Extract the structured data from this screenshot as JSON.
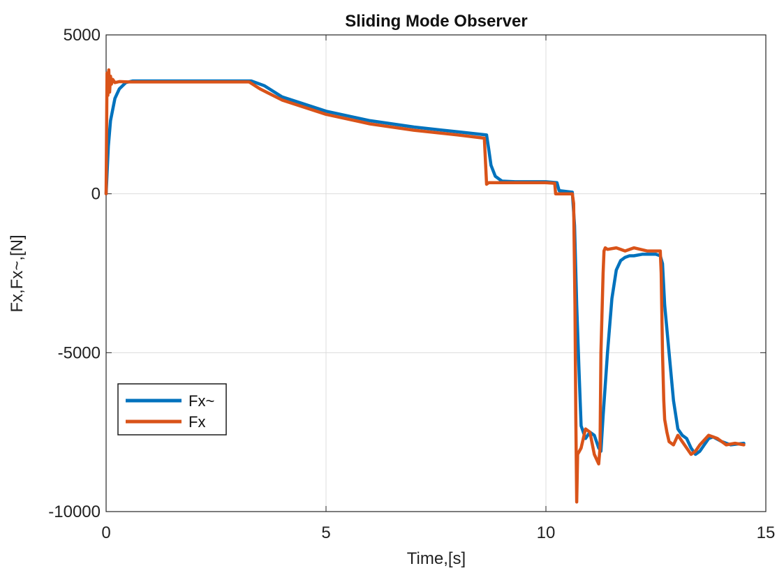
{
  "chart_data": {
    "type": "line",
    "title": "Sliding Mode Observer",
    "xlabel": "Time,[s]",
    "ylabel": "Fx,Fx~,[N]",
    "xlim": [
      0,
      15
    ],
    "ylim": [
      -10000,
      5000
    ],
    "xticks": [
      0,
      5,
      10,
      15
    ],
    "yticks": [
      5000,
      0,
      -5000,
      -10000
    ],
    "xtick_labels": [
      "0",
      "5",
      "10",
      "15"
    ],
    "ytick_labels": [
      "5000",
      "0",
      "-5000",
      "-10000"
    ],
    "grid": true,
    "legend_position": "left",
    "series": [
      {
        "name": "Fx~",
        "color": "#0072BD",
        "x": [
          0,
          0.05,
          0.1,
          0.2,
          0.3,
          0.45,
          0.6,
          1.0,
          2.0,
          3.0,
          3.3,
          3.6,
          4.0,
          5.0,
          6.0,
          7.0,
          8.0,
          8.65,
          8.7,
          8.75,
          8.85,
          9.0,
          9.3,
          10.0,
          10.25,
          10.3,
          10.6,
          10.65,
          10.7,
          10.75,
          10.8,
          10.9,
          11.0,
          11.1,
          11.2,
          11.25,
          11.3,
          11.4,
          11.5,
          11.6,
          11.7,
          11.8,
          11.9,
          12.0,
          12.2,
          12.5,
          12.6,
          12.65,
          12.7,
          12.8,
          12.9,
          13.0,
          13.1,
          13.2,
          13.3,
          13.4,
          13.5,
          13.6,
          13.7,
          13.8,
          14.0,
          14.2,
          14.5
        ],
        "y": [
          0,
          1500,
          2300,
          3000,
          3300,
          3500,
          3550,
          3550,
          3550,
          3550,
          3550,
          3400,
          3050,
          2600,
          2300,
          2100,
          1950,
          1850,
          1400,
          900,
          550,
          400,
          380,
          380,
          350,
          100,
          50,
          -1000,
          -3500,
          -5500,
          -7300,
          -7700,
          -7500,
          -7600,
          -8000,
          -8100,
          -7000,
          -5000,
          -3300,
          -2400,
          -2100,
          -2000,
          -1950,
          -1950,
          -1900,
          -1900,
          -1950,
          -2200,
          -3500,
          -5000,
          -6500,
          -7400,
          -7600,
          -7700,
          -8000,
          -8200,
          -8100,
          -7900,
          -7700,
          -7650,
          -7800,
          -7900,
          -7850
        ]
      },
      {
        "name": "Fx",
        "color": "#D95319",
        "x": [
          0,
          0.02,
          0.04,
          0.06,
          0.08,
          0.1,
          0.12,
          0.15,
          0.2,
          0.3,
          0.5,
          1.0,
          2.0,
          3.0,
          3.25,
          3.5,
          4.0,
          5.0,
          6.0,
          7.0,
          8.0,
          8.6,
          8.65,
          8.7,
          9.0,
          10.0,
          10.2,
          10.22,
          10.3,
          10.6,
          10.63,
          10.66,
          10.68,
          10.7,
          10.72,
          10.8,
          10.9,
          11.0,
          11.1,
          11.2,
          11.23,
          11.25,
          11.3,
          11.32,
          11.35,
          11.4,
          11.6,
          11.8,
          12.0,
          12.3,
          12.6,
          12.62,
          12.65,
          12.68,
          12.7,
          12.75,
          12.8,
          12.9,
          13.0,
          13.1,
          13.2,
          13.3,
          13.4,
          13.5,
          13.7,
          13.9,
          14.1,
          14.3,
          14.5
        ],
        "y": [
          0,
          3800,
          3100,
          3900,
          3200,
          3700,
          3450,
          3600,
          3500,
          3530,
          3520,
          3520,
          3520,
          3520,
          3520,
          3300,
          2950,
          2500,
          2200,
          2000,
          1850,
          1750,
          300,
          350,
          350,
          350,
          330,
          0,
          0,
          0,
          -300,
          -3500,
          -7000,
          -9700,
          -8200,
          -8000,
          -7400,
          -7500,
          -8200,
          -8500,
          -8000,
          -5000,
          -2500,
          -1800,
          -1700,
          -1750,
          -1700,
          -1800,
          -1700,
          -1800,
          -1800,
          -2500,
          -5000,
          -6500,
          -7100,
          -7500,
          -7800,
          -7900,
          -7600,
          -7800,
          -8000,
          -8200,
          -8100,
          -7900,
          -7600,
          -7700,
          -7900,
          -7850,
          -7900
        ]
      }
    ]
  }
}
